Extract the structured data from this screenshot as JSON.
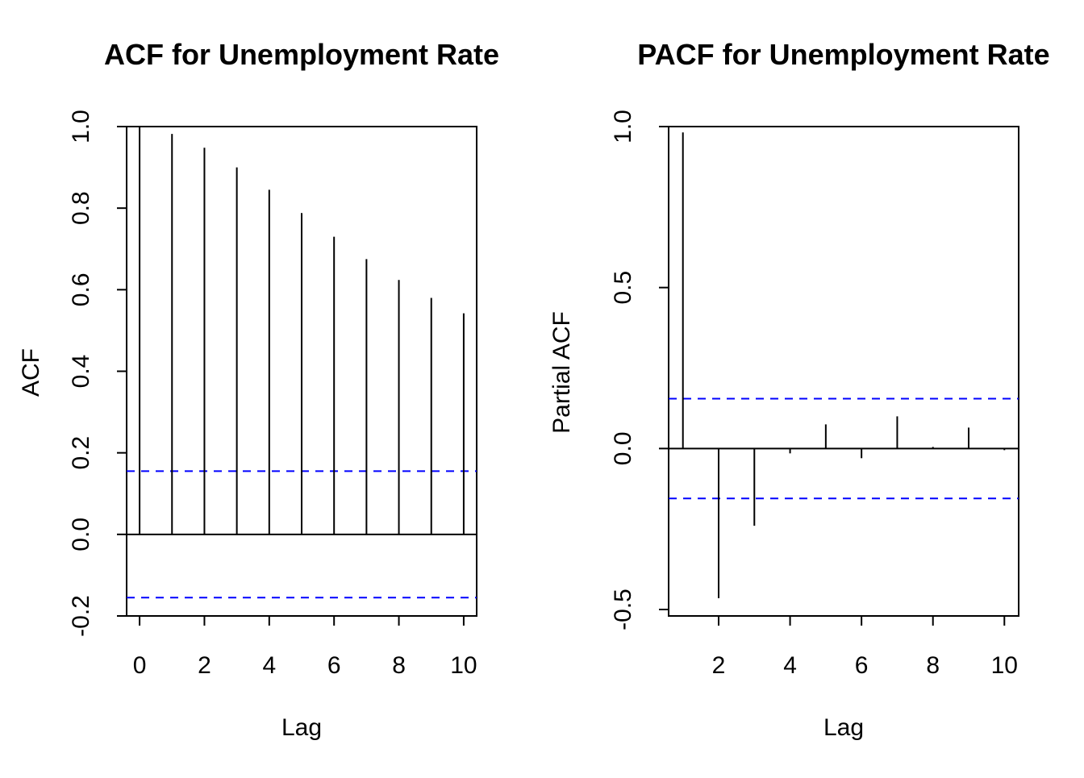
{
  "chart_data": [
    {
      "type": "bar",
      "title": "ACF for Unemployment Rate",
      "xlabel": "Lag",
      "ylabel": "ACF",
      "xlim": [
        -0.4,
        10.4
      ],
      "ylim": [
        -0.2,
        1.0
      ],
      "x_ticks": [
        "0",
        "2",
        "4",
        "6",
        "8",
        "10"
      ],
      "y_ticks": [
        "-0.2",
        "0.0",
        "0.2",
        "0.4",
        "0.6",
        "0.8",
        "1.0"
      ],
      "lags": [
        0,
        1,
        2,
        3,
        4,
        5,
        6,
        7,
        8,
        9,
        10
      ],
      "values": [
        1.0,
        0.982,
        0.948,
        0.9,
        0.845,
        0.788,
        0.73,
        0.675,
        0.624,
        0.58,
        0.542
      ],
      "confidence_bounds": [
        0.155,
        -0.155
      ],
      "zero_line": true,
      "confidence_line_color": "#0000ff",
      "bar_color": "#000000"
    },
    {
      "type": "bar",
      "title": "PACF for Unemployment Rate",
      "xlabel": "Lag",
      "ylabel": "Partial ACF",
      "xlim": [
        0.6,
        10.4
      ],
      "ylim": [
        -0.52,
        1.0
      ],
      "x_ticks": [
        "2",
        "4",
        "6",
        "8",
        "10"
      ],
      "y_ticks": [
        "-0.5",
        "0.0",
        "0.5",
        "1.0"
      ],
      "lags": [
        1,
        2,
        3,
        4,
        5,
        6,
        7,
        8,
        9,
        10
      ],
      "values": [
        0.982,
        -0.465,
        -0.24,
        -0.015,
        0.075,
        -0.03,
        0.1,
        0.005,
        0.065,
        -0.005
      ],
      "confidence_bounds": [
        0.155,
        -0.155
      ],
      "zero_line": true,
      "confidence_line_color": "#0000ff",
      "bar_color": "#000000"
    }
  ]
}
